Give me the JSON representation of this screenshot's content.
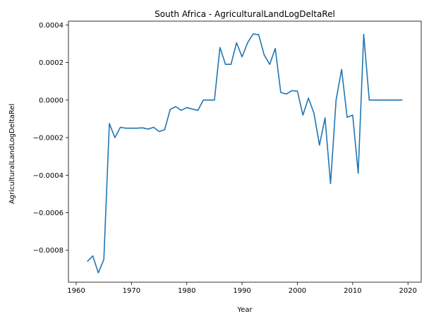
{
  "chart_data": {
    "type": "line",
    "title": "South Africa - AgriculturalLandLogDeltaRel",
    "xlabel": "Year",
    "ylabel": "AgriculturalLandLogDeltaRel",
    "xlim": [
      1958.6,
      2022.4
    ],
    "ylim": [
      -0.00097,
      0.00042
    ],
    "xticks": [
      1960,
      1970,
      1980,
      1990,
      2000,
      2010,
      2020
    ],
    "xtick_labels": [
      "1960",
      "1970",
      "1980",
      "1990",
      "2000",
      "2010",
      "2020"
    ],
    "yticks": [
      -0.0008,
      -0.0006,
      -0.0004,
      -0.0002,
      0.0,
      0.0002,
      0.0004
    ],
    "ytick_labels": [
      "−0.0008",
      "−0.0006",
      "−0.0004",
      "−0.0002",
      "0.0000",
      "0.0002",
      "0.0004"
    ],
    "grid": false,
    "series": [
      {
        "color": "#1f77b4",
        "x": [
          1962,
          1963,
          1964,
          1965,
          1966,
          1967,
          1968,
          1969,
          1970,
          1971,
          1972,
          1973,
          1974,
          1975,
          1976,
          1977,
          1978,
          1979,
          1980,
          1981,
          1982,
          1983,
          1984,
          1985,
          1986,
          1987,
          1988,
          1989,
          1990,
          1991,
          1992,
          1993,
          1994,
          1995,
          1996,
          1997,
          1998,
          1999,
          2000,
          2001,
          2002,
          2003,
          2004,
          2005,
          2006,
          2007,
          2008,
          2009,
          2010,
          2011,
          2012,
          2013,
          2014,
          2015,
          2016,
          2017,
          2018,
          2019
        ],
        "y": [
          -0.00086,
          -0.00083,
          -0.00092,
          -0.00085,
          -0.000125,
          -0.0002,
          -0.000145,
          -0.00015,
          -0.00015,
          -0.00015,
          -0.000148,
          -0.000155,
          -0.000145,
          -0.000168,
          -0.000158,
          -5e-05,
          -3.5e-05,
          -5.5e-05,
          -4e-05,
          -4.8e-05,
          -5.5e-05,
          0.0,
          0.0,
          0.0,
          0.00028,
          0.00019,
          0.00019,
          0.000305,
          0.00023,
          0.000305,
          0.000352,
          0.000348,
          0.00024,
          0.00019,
          0.000275,
          4e-05,
          3.2e-05,
          5e-05,
          4.8e-05,
          -8e-05,
          1e-05,
          -7e-05,
          -0.00024,
          -9.5e-05,
          -0.000445,
          0.0,
          0.000163,
          -9.2e-05,
          -8e-05,
          -0.00039,
          0.00035,
          0.0,
          0.0,
          0.0,
          0.0,
          0.0,
          0.0,
          0.0
        ]
      }
    ]
  }
}
